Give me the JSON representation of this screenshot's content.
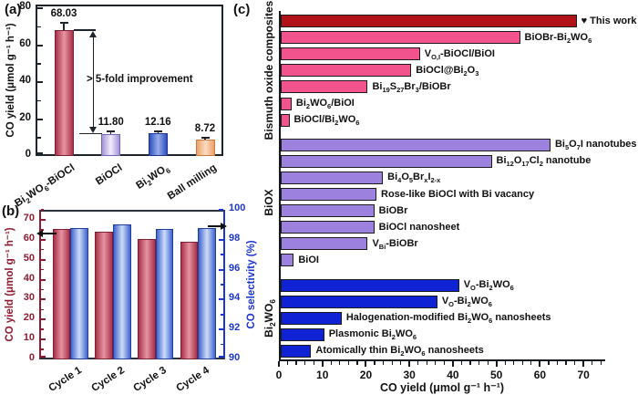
{
  "figure": {
    "background": "#ffffff"
  },
  "colors": {
    "dark_red": "#b11217",
    "pink": "#f2538c",
    "purple": "#9c82de",
    "blue": "#1023d4",
    "left_axis_b": "#8e1b30",
    "right_axis_b": "#1d36cf",
    "axis_dark": "#1e242c"
  },
  "chart_data": [
    {
      "id": "panel-a",
      "type": "bar",
      "tag": "(a)",
      "ylabel": "CO yield (μmol g⁻¹ h⁻¹)",
      "ylim": [
        0,
        82
      ],
      "yticks": [
        0,
        20,
        40,
        60,
        80
      ],
      "yminorticks": [
        10,
        30,
        50,
        70
      ],
      "categories": [
        "Bi<sub>2</sub>WO<sub>6</sub>-BiOCl",
        "BiOCl",
        "Bi<sub>2</sub>WO<sub>6</sub>",
        "Ball milling"
      ],
      "values": [
        68.03,
        11.8,
        12.16,
        8.72
      ],
      "errors": [
        3.9,
        1.3,
        1.3,
        1.0
      ],
      "value_labels": [
        "68.03",
        "11.80",
        "12.16",
        "8.72"
      ],
      "bar_styles": [
        "crimson",
        "lavender",
        "blue",
        "orange"
      ],
      "annotation": "> 5-fold improvement",
      "grid": false
    },
    {
      "id": "panel-b",
      "type": "bar-dual-axis",
      "tag": "(b)",
      "categories": [
        "Cycle 1",
        "Cycle 2",
        "Cycle 3",
        "Cycle 4"
      ],
      "series": [
        {
          "name": "CO yield",
          "axis": "left",
          "style": "crimson",
          "values": [
            65.5,
            64.0,
            60.5,
            59.0
          ]
        },
        {
          "name": "CO selectivity",
          "axis": "right",
          "style": "steel",
          "values": [
            98.8,
            99.0,
            98.7,
            98.8
          ]
        }
      ],
      "left": {
        "label": "CO yield (μmol g⁻¹ h⁻¹)",
        "lim": [
          0,
          75
        ],
        "ticks": [
          0,
          10,
          20,
          30,
          40,
          50,
          60,
          70
        ]
      },
      "right": {
        "label": "CO selectivity (%)",
        "lim": [
          90,
          100
        ],
        "ticks": [
          90,
          92,
          94,
          96,
          98,
          100
        ]
      },
      "grid": false
    },
    {
      "id": "panel-c",
      "type": "barh",
      "tag": "(c)",
      "xlabel": "CO yield (μmol g⁻¹ h⁻¹)",
      "xlim": [
        0,
        75
      ],
      "xticks": [
        0,
        10,
        20,
        30,
        40,
        50,
        60,
        70
      ],
      "grid": false,
      "groups": [
        {
          "name": "Bismuth oxide composites",
          "style": "pink",
          "bars": [
            {
              "label": "♥ This work",
              "value": 68,
              "style": "darkred"
            },
            {
              "label": "BiOBr-Bi<sub>2</sub>WO<sub>6</sub>",
              "value": 55
            },
            {
              "label": "V<sub>O,I</sub>-BiOCl/BiOI",
              "value": 32
            },
            {
              "label": "BiOCl@Bi<sub>2</sub>O<sub>3</sub>",
              "value": 30
            },
            {
              "label": "Bi<sub>19</sub>S<sub>27</sub>Br<sub>3</sub>/BiOBr",
              "value": 20
            },
            {
              "label": "Bi<sub>2</sub>WO<sub>6</sub>/BiOI",
              "value": 2.5
            },
            {
              "label": "BiOCl/Bi<sub>2</sub>WO<sub>6</sub>",
              "value": 2
            }
          ]
        },
        {
          "name": "BiOX",
          "style": "purple",
          "bars": [
            {
              "label": "Bi<sub>5</sub>O<sub>7</sub>I nanotubes",
              "value": 62
            },
            {
              "label": "Bi<sub>12</sub>O<sub>17</sub>Cl<sub>2</sub> nanotube",
              "value": 48.5
            },
            {
              "label": "Bi<sub>4</sub>O<sub>5</sub>Br<sub>x</sub>I<sub>2-x</sub>",
              "value": 23.5
            },
            {
              "label": "Rose-like BiOCl with Bi vacancy",
              "value": 22
            },
            {
              "label": "BiOBr",
              "value": 21.5
            },
            {
              "label": "BiOCl nanosheet",
              "value": 21.5
            },
            {
              "label": "V<sub>Bi</sub>-BiOBr",
              "value": 20
            },
            {
              "label": "BiOI",
              "value": 3
            }
          ]
        },
        {
          "name": "Bi<sub>2</sub>WO<sub>6</sub>",
          "style": "blue",
          "bars": [
            {
              "label": "V<sub>O</sub>-Bi<sub>2</sub>WO<sub>6</sub>",
              "value": 41
            },
            {
              "label": "V<sub>O</sub>-Bi<sub>2</sub>WO<sub>6</sub>",
              "value": 36
            },
            {
              "label": "Halogenation-modified Bi<sub>2</sub>WO<sub>6</sub> nanosheets",
              "value": 14
            },
            {
              "label": "Plasmonic Bi<sub>2</sub>WO<sub>6</sub>",
              "value": 10
            },
            {
              "label": "Atomically thin Bi<sub>2</sub>WO<sub>6</sub> nanosheets",
              "value": 7
            }
          ]
        }
      ]
    }
  ]
}
